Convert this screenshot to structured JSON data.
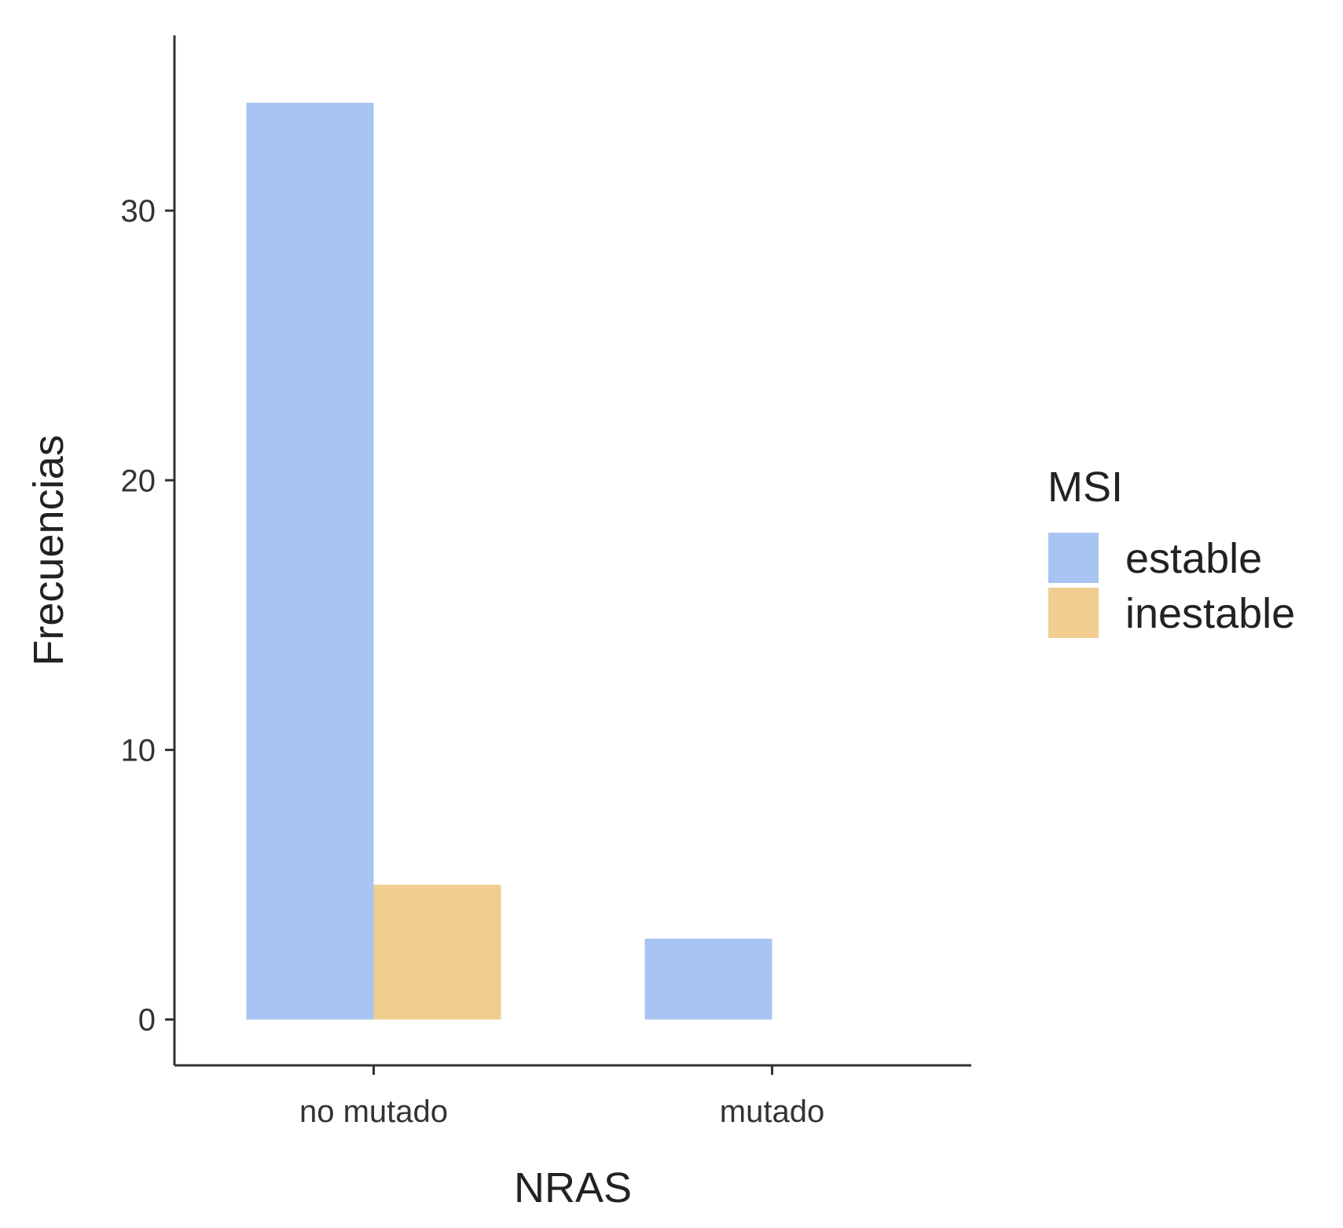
{
  "chart_data": {
    "type": "bar",
    "xlabel": "NRAS",
    "ylabel": "Frecuencias",
    "categories": [
      "no mutado",
      "mutado"
    ],
    "series": [
      {
        "name": "estable",
        "values": [
          34,
          3
        ],
        "color": "#a7c4f2"
      },
      {
        "name": "inestable",
        "values": [
          5,
          0
        ],
        "color": "#f1cd8f"
      }
    ],
    "yticks": [
      0,
      10,
      20,
      30
    ],
    "ylim": [
      -1.7,
      36.5
    ],
    "legend": {
      "title": "MSI",
      "position": "right"
    },
    "grid": false
  }
}
